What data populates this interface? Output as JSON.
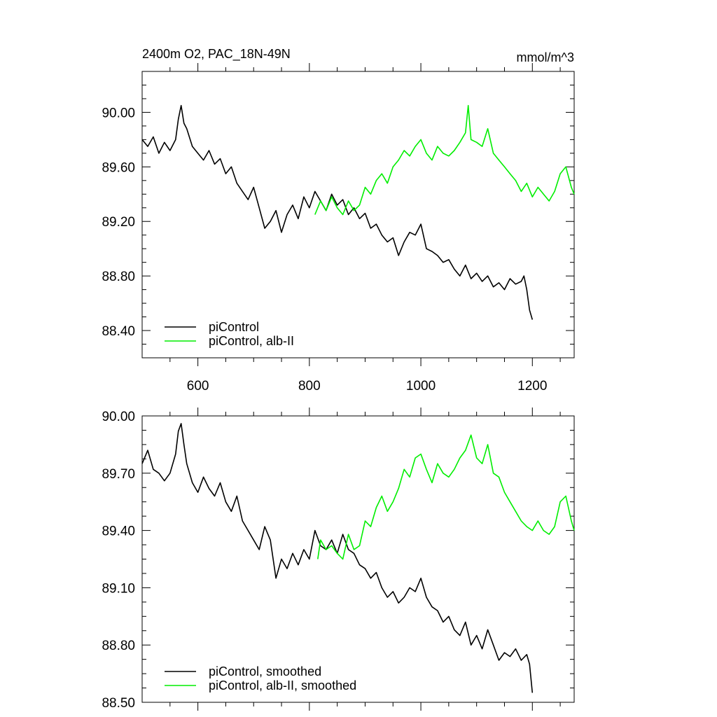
{
  "chart_data": [
    {
      "type": "line",
      "title": "2400m O2, PAC_18N-49N",
      "units": "mmol/m^3",
      "xlim": [
        500,
        1275
      ],
      "ylim": [
        88.2,
        90.3
      ],
      "xticks": [
        600,
        800,
        1000,
        1200
      ],
      "xtick_labels": [
        "600",
        "800",
        "1000",
        "1200"
      ],
      "yticks": [
        88.4,
        88.8,
        89.2,
        89.6,
        90.0
      ],
      "ytick_labels": [
        "88.40",
        "88.80",
        "89.20",
        "89.60",
        "90.00"
      ],
      "legend_position": "bottom-left",
      "grid": false,
      "series": [
        {
          "name": "piControl",
          "color": "#000000",
          "x": [
            500,
            510,
            520,
            530,
            540,
            550,
            560,
            565,
            570,
            575,
            580,
            590,
            600,
            610,
            620,
            630,
            640,
            650,
            660,
            670,
            680,
            690,
            700,
            710,
            720,
            730,
            740,
            750,
            760,
            770,
            780,
            790,
            800,
            810,
            820,
            830,
            840,
            850,
            860,
            870,
            880,
            890,
            900,
            910,
            920,
            930,
            940,
            950,
            960,
            970,
            980,
            990,
            1000,
            1010,
            1020,
            1030,
            1040,
            1050,
            1060,
            1070,
            1080,
            1090,
            1100,
            1110,
            1120,
            1130,
            1140,
            1150,
            1160,
            1170,
            1180,
            1185,
            1190,
            1195,
            1200
          ],
          "y": [
            89.8,
            89.75,
            89.82,
            89.7,
            89.78,
            89.72,
            89.8,
            89.95,
            90.05,
            89.92,
            89.88,
            89.75,
            89.7,
            89.65,
            89.72,
            89.62,
            89.66,
            89.55,
            89.6,
            89.48,
            89.42,
            89.36,
            89.45,
            89.3,
            89.15,
            89.2,
            89.28,
            89.12,
            89.25,
            89.32,
            89.22,
            89.38,
            89.3,
            89.42,
            89.35,
            89.28,
            89.4,
            89.32,
            89.36,
            89.25,
            89.3,
            89.22,
            89.26,
            89.15,
            89.18,
            89.1,
            89.05,
            89.08,
            88.95,
            89.05,
            89.12,
            89.1,
            89.18,
            89.0,
            88.98,
            88.95,
            88.9,
            88.92,
            88.85,
            88.8,
            88.88,
            88.78,
            88.82,
            88.76,
            88.8,
            88.72,
            88.75,
            88.7,
            88.78,
            88.74,
            88.76,
            88.8,
            88.7,
            88.55,
            88.48
          ]
        },
        {
          "name": "piControl, alb-II",
          "color": "#00ee00",
          "x": [
            810,
            820,
            830,
            840,
            850,
            860,
            870,
            880,
            890,
            900,
            910,
            920,
            930,
            940,
            950,
            960,
            970,
            980,
            990,
            1000,
            1010,
            1020,
            1030,
            1040,
            1050,
            1060,
            1070,
            1080,
            1085,
            1090,
            1100,
            1110,
            1120,
            1130,
            1140,
            1150,
            1160,
            1170,
            1180,
            1190,
            1200,
            1210,
            1220,
            1230,
            1240,
            1250,
            1260,
            1270,
            1275
          ],
          "y": [
            89.25,
            89.35,
            89.28,
            89.38,
            89.3,
            89.25,
            89.35,
            89.28,
            89.32,
            89.45,
            89.4,
            89.5,
            89.55,
            89.48,
            89.6,
            89.65,
            89.72,
            89.68,
            89.75,
            89.8,
            89.7,
            89.65,
            89.75,
            89.7,
            89.68,
            89.72,
            89.78,
            89.85,
            90.05,
            89.8,
            89.78,
            89.75,
            89.88,
            89.7,
            89.65,
            89.6,
            89.55,
            89.5,
            89.42,
            89.48,
            89.38,
            89.45,
            89.4,
            89.35,
            89.42,
            89.55,
            89.6,
            89.45,
            89.4
          ]
        }
      ]
    },
    {
      "type": "line",
      "xlim": [
        500,
        1275
      ],
      "ylim": [
        88.5,
        90.0
      ],
      "xticks": [
        600,
        800,
        1000,
        1200
      ],
      "yticks": [
        88.5,
        88.8,
        89.1,
        89.4,
        89.7,
        90.0
      ],
      "ytick_labels": [
        "88.50",
        "88.80",
        "89.10",
        "89.40",
        "89.70",
        "90.00"
      ],
      "legend_position": "bottom-left",
      "grid": false,
      "series": [
        {
          "name": "piControl, smoothed",
          "color": "#000000",
          "x": [
            500,
            510,
            520,
            530,
            540,
            550,
            560,
            565,
            570,
            575,
            580,
            590,
            600,
            610,
            620,
            630,
            640,
            650,
            660,
            670,
            680,
            690,
            700,
            710,
            720,
            730,
            740,
            750,
            760,
            770,
            780,
            790,
            800,
            810,
            820,
            830,
            840,
            850,
            860,
            870,
            880,
            890,
            900,
            910,
            920,
            930,
            940,
            950,
            960,
            970,
            980,
            990,
            1000,
            1010,
            1020,
            1030,
            1040,
            1050,
            1060,
            1070,
            1080,
            1090,
            1100,
            1110,
            1120,
            1130,
            1140,
            1150,
            1160,
            1170,
            1180,
            1190,
            1195,
            1200
          ],
          "y": [
            89.75,
            89.82,
            89.72,
            89.7,
            89.66,
            89.7,
            89.8,
            89.92,
            89.96,
            89.85,
            89.75,
            89.65,
            89.6,
            89.68,
            89.62,
            89.58,
            89.65,
            89.55,
            89.5,
            89.58,
            89.45,
            89.4,
            89.35,
            89.3,
            89.42,
            89.35,
            89.15,
            89.25,
            89.2,
            89.28,
            89.22,
            89.3,
            89.25,
            89.4,
            89.32,
            89.3,
            89.35,
            89.28,
            89.38,
            89.3,
            89.28,
            89.22,
            89.2,
            89.15,
            89.18,
            89.1,
            89.05,
            89.08,
            89.02,
            89.05,
            89.1,
            89.08,
            89.15,
            89.05,
            89.0,
            88.98,
            88.92,
            88.95,
            88.88,
            88.85,
            88.92,
            88.8,
            88.85,
            88.78,
            88.88,
            88.8,
            88.72,
            88.76,
            88.74,
            88.78,
            88.72,
            88.75,
            88.7,
            88.55
          ]
        },
        {
          "name": "piControl, alb-II, smoothed",
          "color": "#00ee00",
          "x": [
            815,
            820,
            830,
            840,
            850,
            860,
            870,
            880,
            890,
            900,
            910,
            920,
            930,
            940,
            950,
            960,
            970,
            980,
            990,
            1000,
            1010,
            1020,
            1030,
            1040,
            1050,
            1060,
            1070,
            1080,
            1090,
            1100,
            1110,
            1120,
            1130,
            1140,
            1150,
            1160,
            1170,
            1180,
            1190,
            1200,
            1210,
            1220,
            1230,
            1240,
            1250,
            1260,
            1270,
            1275
          ],
          "y": [
            89.25,
            89.35,
            89.3,
            89.32,
            89.28,
            89.25,
            89.38,
            89.3,
            89.32,
            89.45,
            89.42,
            89.52,
            89.58,
            89.5,
            89.55,
            89.62,
            89.72,
            89.68,
            89.78,
            89.8,
            89.72,
            89.65,
            89.75,
            89.7,
            89.68,
            89.72,
            89.78,
            89.82,
            89.9,
            89.78,
            89.75,
            89.85,
            89.7,
            89.68,
            89.6,
            89.55,
            89.5,
            89.45,
            89.42,
            89.4,
            89.45,
            89.4,
            89.38,
            89.42,
            89.55,
            89.58,
            89.45,
            89.4
          ]
        }
      ]
    }
  ]
}
